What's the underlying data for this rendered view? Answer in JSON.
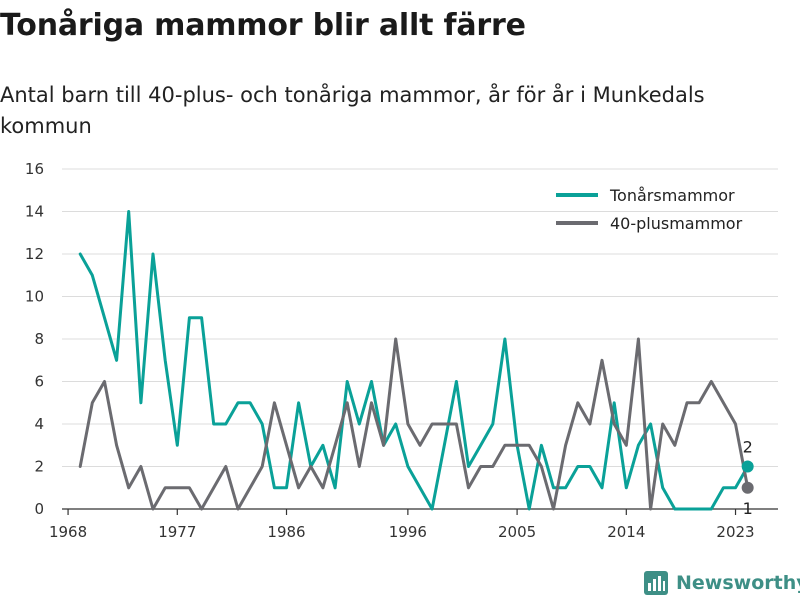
{
  "title": "Tonåriga mammor blir allt färre",
  "subtitle": "Antal barn till 40-plus- och tonåriga mammor, år för år i Munkedals kommun",
  "brand": {
    "name": "Newsworthy",
    "icon": "bar-chart-logo-icon"
  },
  "chart_data": {
    "type": "line",
    "title": "Tonåriga mammor blir allt färre",
    "subtitle": "Antal barn till 40-plus- och tonåriga mammor, år för år i Munkedals kommun",
    "xlabel": "",
    "ylabel": "",
    "x": [
      1969,
      1970,
      1971,
      1972,
      1973,
      1974,
      1975,
      1976,
      1977,
      1978,
      1979,
      1980,
      1981,
      1982,
      1983,
      1984,
      1985,
      1986,
      1987,
      1988,
      1989,
      1990,
      1991,
      1992,
      1993,
      1994,
      1995,
      1996,
      1997,
      1998,
      1999,
      2000,
      2001,
      2002,
      2003,
      2004,
      2005,
      2006,
      2007,
      2008,
      2009,
      2010,
      2011,
      2012,
      2013,
      2014,
      2015,
      2016,
      2017,
      2018,
      2019,
      2020,
      2021,
      2022,
      2023,
      2024
    ],
    "series": [
      {
        "name": "Tonårsmammor",
        "color": "#0aa198",
        "values": [
          12,
          11,
          9,
          7,
          14,
          5,
          12,
          7,
          3,
          9,
          9,
          4,
          4,
          5,
          5,
          4,
          1,
          1,
          5,
          2,
          3,
          1,
          6,
          4,
          6,
          3,
          4,
          2,
          1,
          0,
          3,
          6,
          2,
          3,
          4,
          8,
          3,
          0,
          3,
          1,
          1,
          2,
          2,
          1,
          5,
          1,
          3,
          4,
          1,
          0,
          0,
          0,
          0,
          1,
          1,
          2
        ]
      },
      {
        "name": "40-plusmammor",
        "color": "#6b6b70",
        "values": [
          2,
          5,
          6,
          3,
          1,
          2,
          0,
          1,
          1,
          1,
          0,
          1,
          2,
          0,
          1,
          2,
          5,
          3,
          1,
          2,
          1,
          3,
          5,
          2,
          5,
          3,
          8,
          4,
          3,
          4,
          4,
          4,
          1,
          2,
          2,
          3,
          3,
          3,
          2,
          0,
          3,
          5,
          4,
          7,
          4,
          3,
          8,
          0,
          4,
          3,
          5,
          5,
          6,
          5,
          4,
          1
        ]
      }
    ],
    "xticks": [
      1968,
      1977,
      1986,
      1996,
      2005,
      2014,
      2023
    ],
    "yticks": [
      0,
      2,
      4,
      6,
      8,
      10,
      12,
      14,
      16
    ],
    "xlim": [
      1967.5,
      2026.5
    ],
    "ylim": [
      0,
      16
    ],
    "grid": true,
    "legend_position": "top-right",
    "end_labels": [
      {
        "series": "Tonårsmammor",
        "text": "2",
        "position": "above"
      },
      {
        "series": "40-plusmammor",
        "text": "1",
        "position": "below"
      }
    ]
  }
}
